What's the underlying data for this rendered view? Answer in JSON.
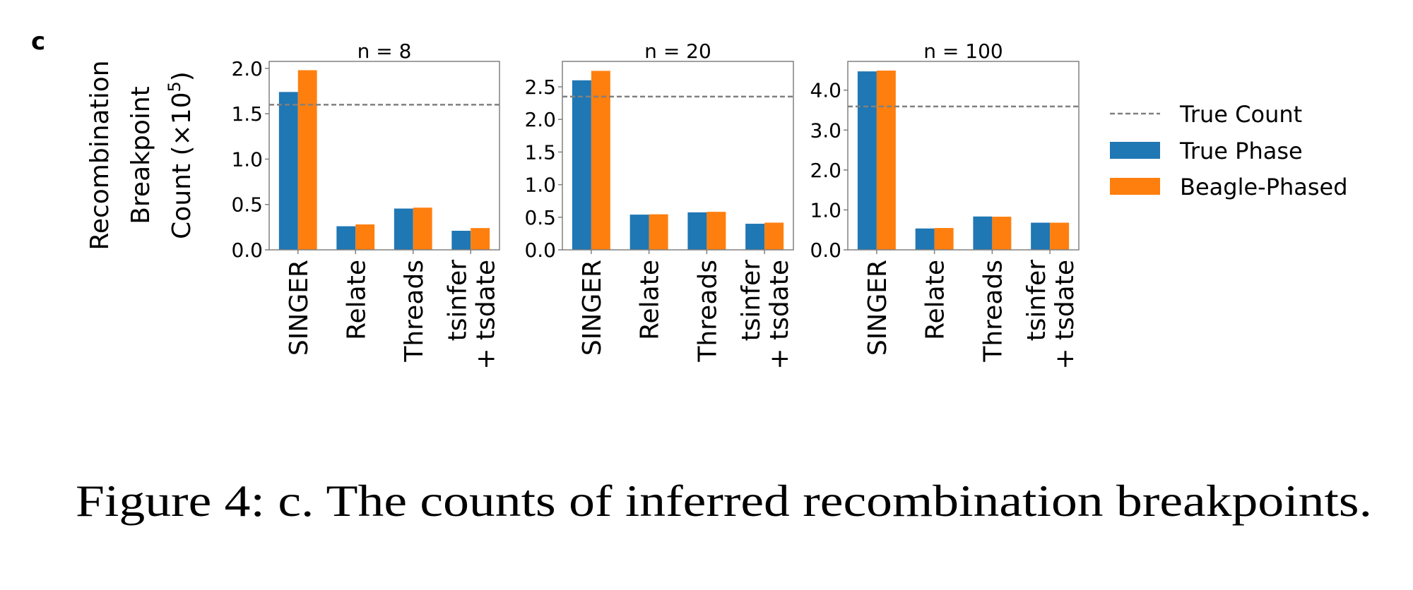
{
  "panel_label": "c",
  "caption": "Figure 4: c. The counts of inferred recombination breakpoints.",
  "colors": {
    "true_phase": "#1f77b4",
    "beagle_phased": "#ff7f0e",
    "true_count": "#808080",
    "axis": "#808080"
  },
  "chart_data": {
    "type": "bar",
    "ylabel_lines": [
      "Recombination",
      "Breakpoint",
      "Count (×10",
      "5",
      ")"
    ],
    "categories": [
      "SINGER",
      "Relate",
      "Threads",
      "tsinfer\n+ tsdate"
    ],
    "category_lines": [
      [
        "SINGER"
      ],
      [
        "Relate"
      ],
      [
        "Threads"
      ],
      [
        "tsinfer",
        "+ tsdate"
      ]
    ],
    "legend": {
      "placement": "right",
      "entries": [
        "True Count",
        "True Phase",
        "Beagle-Phased"
      ]
    },
    "panels": [
      {
        "title": "n = 8",
        "ylim": [
          0,
          2.077
        ],
        "yticks": [
          0,
          0.5,
          1.0,
          1.5,
          2.0
        ],
        "ytick_labels": [
          "0.0",
          "0.5",
          "1.0",
          "1.5",
          "2.0"
        ],
        "true_count": 1.6,
        "series": [
          {
            "name": "True Phase",
            "values": [
              1.74,
              0.26,
              0.455,
              0.21
            ]
          },
          {
            "name": "Beagle-Phased",
            "values": [
              1.98,
              0.28,
              0.465,
              0.24
            ]
          }
        ]
      },
      {
        "title": "n = 20",
        "ylim": [
          0,
          2.89
        ],
        "yticks": [
          0,
          0.5,
          1.0,
          1.5,
          2.0,
          2.5
        ],
        "ytick_labels": [
          "0.0",
          "0.5",
          "1.0",
          "1.5",
          "2.0",
          "2.5"
        ],
        "true_count": 2.35,
        "series": [
          {
            "name": "True Phase",
            "values": [
              2.6,
              0.54,
              0.575,
              0.4
            ]
          },
          {
            "name": "Beagle-Phased",
            "values": [
              2.745,
              0.545,
              0.583,
              0.417
            ]
          }
        ]
      },
      {
        "title": "n = 100",
        "ylim": [
          0,
          4.72
        ],
        "yticks": [
          0,
          1.0,
          2.0,
          3.0,
          4.0
        ],
        "ytick_labels": [
          "0.0",
          "1.0",
          "2.0",
          "3.0",
          "4.0"
        ],
        "true_count": 3.59,
        "series": [
          {
            "name": "True Phase",
            "values": [
              4.47,
              0.535,
              0.835,
              0.68
            ]
          },
          {
            "name": "Beagle-Phased",
            "values": [
              4.49,
              0.547,
              0.83,
              0.68
            ]
          }
        ]
      }
    ]
  }
}
